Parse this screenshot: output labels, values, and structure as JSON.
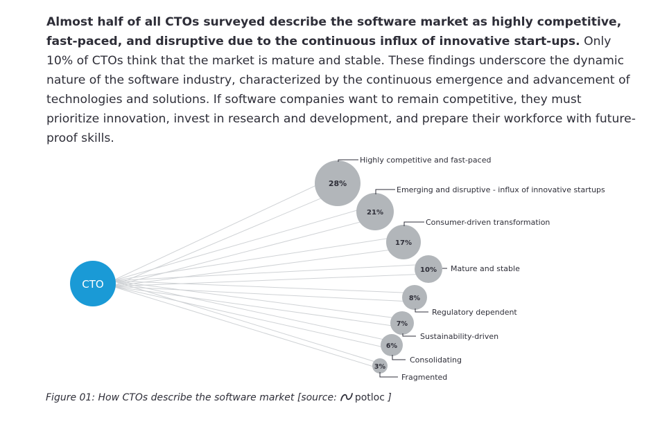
{
  "intro": {
    "bold": "Almost half of all CTOs surveyed describe the software market as highly competitive, fast-paced, and disruptive due to the continuous influx of innovative start-ups.",
    "rest": " Only 10% of CTOs think that the market is mature and stable. These findings underscore the dynamic nature of the software industry, characterized by the continuous emergence and advancement of technologies and solutions. If software companies want to remain competitive, they must prioritize innovation, invest in research and development, and prepare their workforce with future-proof skills."
  },
  "hub": {
    "label": "CTO",
    "color": "#1a9ad6"
  },
  "colors": {
    "bubble": "#b2b6ba",
    "line": "#cfd2d5",
    "text": "#2e2e38"
  },
  "chart_data": {
    "type": "bubble",
    "categories": [
      "Highly competitive and fast-paced",
      "Emerging and disruptive - influx of innovative startups",
      "Consumer-driven transformation",
      "Mature and stable",
      "Regulatory dependent",
      "Sustainability-driven",
      "Consolidating",
      "Fragmented"
    ],
    "values": [
      28,
      21,
      17,
      10,
      8,
      7,
      6,
      3
    ],
    "value_labels": [
      "28%",
      "21%",
      "17%",
      "10%",
      "8%",
      "7%",
      "6%",
      "3%"
    ]
  },
  "caption": {
    "prefix": "Figure 01: How CTOs describe the software market [source:",
    "brand": "potloc",
    "suffix": "]"
  }
}
